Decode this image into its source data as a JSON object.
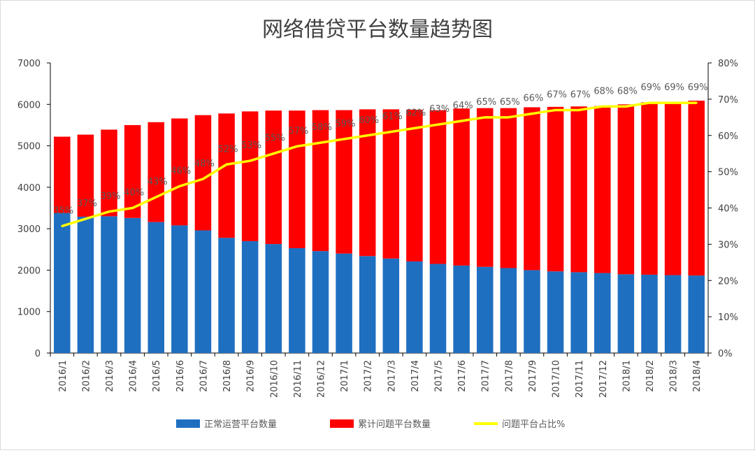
{
  "chart_data": {
    "type": "bar",
    "title": "网络借贷平台数量趋势图",
    "categories": [
      "2016/1",
      "2016/2",
      "2016/3",
      "2016/4",
      "2016/5",
      "2016/6",
      "2016/7",
      "2016/8",
      "2016/9",
      "2016/10",
      "2016/11",
      "2016/12",
      "2017/1",
      "2017/2",
      "2017/3",
      "2017/4",
      "2017/5",
      "2017/6",
      "2017/7",
      "2017/8",
      "2017/9",
      "2017/10",
      "2017/11",
      "2017/12",
      "2018/1",
      "2018/2",
      "2018/3",
      "2018/4"
    ],
    "series": [
      {
        "name": "正常运营平台数量",
        "type": "stacked-bar",
        "color": "#1f6fc1",
        "values": [
          3380,
          3290,
          3300,
          3260,
          3160,
          3080,
          2960,
          2780,
          2700,
          2630,
          2530,
          2460,
          2400,
          2340,
          2280,
          2210,
          2150,
          2110,
          2080,
          2050,
          2000,
          1970,
          1950,
          1930,
          1900,
          1890,
          1880,
          1870
        ]
      },
      {
        "name": "累计问题平台数量",
        "type": "stacked-bar",
        "color": "#ff0000",
        "values": [
          1840,
          1980,
          2090,
          2240,
          2410,
          2580,
          2780,
          3000,
          3130,
          3220,
          3320,
          3400,
          3460,
          3540,
          3600,
          3660,
          3710,
          3790,
          3830,
          3860,
          3930,
          3970,
          4000,
          4030,
          4100,
          4160,
          4180,
          4220
        ]
      },
      {
        "name": "问题平台占比%",
        "type": "line",
        "color": "#ffff00",
        "axis": "right",
        "values": [
          35,
          37,
          39,
          40,
          43,
          46,
          48,
          52,
          53,
          55,
          57,
          58,
          59,
          60,
          61,
          62,
          63,
          64,
          65,
          65,
          66,
          67,
          67,
          68,
          68,
          69,
          69,
          69
        ],
        "labels": [
          "35%",
          "37%",
          "39%",
          "40%",
          "43%",
          "46%",
          "48%",
          "52%",
          "53%",
          "55%",
          "57%",
          "58%",
          "59%",
          "60%",
          "61%",
          "62%",
          "63%",
          "64%",
          "65%",
          "65%",
          "66%",
          "67%",
          "67%",
          "68%",
          "68%",
          "69%",
          "69%",
          "69%"
        ]
      }
    ],
    "y_left": {
      "min": 0,
      "max": 7000,
      "ticks": [
        "0",
        "1000",
        "2000",
        "3000",
        "4000",
        "5000",
        "6000",
        "7000"
      ]
    },
    "y_right": {
      "min": 0,
      "max": 80,
      "ticks": [
        "0%",
        "10%",
        "20%",
        "30%",
        "40%",
        "50%",
        "60%",
        "70%",
        "80%"
      ]
    },
    "legend": {
      "position": "bottom",
      "items": [
        "正常运营平台数量",
        "累计问题平台数量",
        "问题平台占比%"
      ]
    }
  }
}
